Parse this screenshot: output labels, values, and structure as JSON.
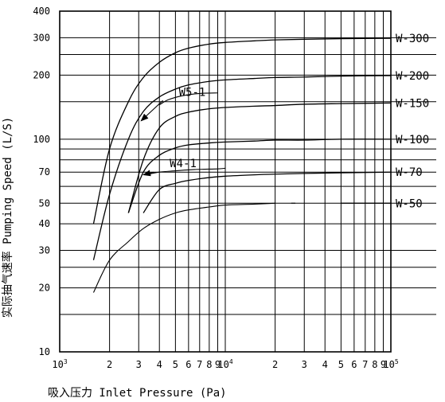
{
  "chart_data": {
    "type": "line",
    "xlabel": "吸入压力 Inlet Pressure (Pa)",
    "ylabel": "实际抽气速率 Pumping Speed (L/S)",
    "xscale": "log",
    "yscale": "log",
    "xlim": [
      1000,
      100000
    ],
    "ylim": [
      10,
      400
    ],
    "grid": true,
    "x_ticks": [
      {
        "value": 1000,
        "label": "10",
        "sup": "3"
      },
      {
        "value": 2000,
        "label": "2"
      },
      {
        "value": 3000,
        "label": "3"
      },
      {
        "value": 4000,
        "label": "4"
      },
      {
        "value": 5000,
        "label": "5"
      },
      {
        "value": 6000,
        "label": "6"
      },
      {
        "value": 7000,
        "label": "7"
      },
      {
        "value": 8000,
        "label": "8"
      },
      {
        "value": 9000,
        "label": "9"
      },
      {
        "value": 10000,
        "label": "10",
        "sup": "4"
      },
      {
        "value": 20000,
        "label": "2"
      },
      {
        "value": 30000,
        "label": "3"
      },
      {
        "value": 40000,
        "label": "4"
      },
      {
        "value": 50000,
        "label": "5"
      },
      {
        "value": 60000,
        "label": "6"
      },
      {
        "value": 70000,
        "label": "7"
      },
      {
        "value": 80000,
        "label": "8"
      },
      {
        "value": 90000,
        "label": "9"
      },
      {
        "value": 100000,
        "label": "10",
        "sup": "5"
      }
    ],
    "y_ticks": [
      {
        "value": 10,
        "label": "10"
      },
      {
        "value": 20,
        "label": "20"
      },
      {
        "value": 30,
        "label": "30"
      },
      {
        "value": 40,
        "label": "40"
      },
      {
        "value": 50,
        "label": "50"
      },
      {
        "value": 70,
        "label": "70"
      },
      {
        "value": 100,
        "label": "100"
      },
      {
        "value": 200,
        "label": "200"
      },
      {
        "value": 300,
        "label": "300"
      },
      {
        "value": 400,
        "label": "400"
      }
    ],
    "series": [
      {
        "name": "W-300",
        "x": [
          1600,
          2000,
          2600,
          3200,
          4000,
          5000,
          6000,
          8000,
          10000,
          15000,
          20000,
          30000,
          50000,
          100000
        ],
        "y": [
          40,
          90,
          150,
          195,
          230,
          255,
          268,
          280,
          285,
          290,
          293,
          295,
          297,
          298
        ]
      },
      {
        "name": "W-200",
        "x": [
          1600,
          2000,
          2600,
          3200,
          4000,
          5000,
          6000,
          8000,
          10000,
          15000,
          20000,
          30000,
          50000,
          100000
        ],
        "y": [
          27,
          55,
          100,
          135,
          158,
          172,
          180,
          187,
          190,
          193,
          195,
          196,
          198,
          199
        ]
      },
      {
        "name": "W-150",
        "x": [
          2600,
          3200,
          4000,
          5000,
          6000,
          8000,
          10000,
          15000,
          20000,
          30000,
          50000,
          100000
        ],
        "y": [
          45,
          80,
          113,
          128,
          134,
          139,
          141,
          143,
          144,
          146,
          147,
          148
        ]
      },
      {
        "name": "W-100",
        "x": [
          2600,
          3200,
          4000,
          5000,
          6000,
          8000,
          10000,
          15000,
          20000,
          30000,
          50000,
          100000
        ],
        "y": [
          45,
          70,
          84,
          91,
          94,
          96,
          97,
          98,
          99,
          99,
          100,
          100
        ]
      },
      {
        "name": "W-70",
        "x": [
          3200,
          4000,
          5000,
          6000,
          8000,
          10000,
          15000,
          20000,
          30000,
          50000,
          100000
        ],
        "y": [
          45,
          58,
          62,
          64,
          66,
          67,
          68,
          68.5,
          69,
          69.5,
          70
        ]
      },
      {
        "name": "W-50",
        "x": [
          1600,
          2000,
          2600,
          3200,
          4000,
          5000,
          6000,
          8000,
          10000,
          15000,
          20000
        ],
        "y": [
          19,
          27,
          33,
          38,
          42,
          45,
          46.5,
          48,
          49,
          49.5,
          50
        ]
      },
      {
        "name": "W-50-dash-1",
        "x": [
          25000,
          26500
        ],
        "y": [
          50,
          50
        ]
      },
      {
        "name": "W-50-dash-2",
        "x": [
          50000,
          100000
        ],
        "y": [
          50,
          50
        ]
      },
      {
        "name": "W5-1-ref",
        "x": [
          4000,
          4500,
          5500,
          7000,
          9000
        ],
        "y": [
          145,
          153,
          160,
          164,
          165
        ]
      },
      {
        "name": "W4-1-ref",
        "x": [
          3300,
          4000,
          5000,
          6500,
          9000,
          10000
        ],
        "y": [
          68,
          70,
          71,
          72,
          72.5,
          73
        ]
      }
    ],
    "series_labels": [
      "W-300",
      "W-200",
      "W-150",
      "W-100",
      "W-70",
      "W-50"
    ],
    "annotations": [
      {
        "text": "W5-1",
        "arrow_from": [
          4200,
          152
        ],
        "arrow_to": [
          3100,
          122
        ]
      },
      {
        "text": "W4-1",
        "arrow_from": [
          3700,
          70
        ],
        "arrow_to": [
          3200,
          68
        ]
      }
    ]
  }
}
